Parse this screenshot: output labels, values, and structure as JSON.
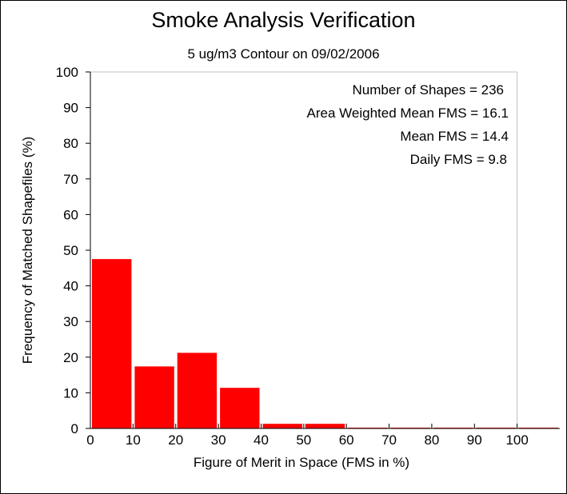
{
  "chart_data": {
    "type": "bar",
    "title": "Smoke Analysis Verification",
    "subtitle": "5 ug/m3 Contour on 09/02/2006",
    "xlabel": "Figure of Merit in Space (FMS in %)",
    "ylabel": "Frequency of Matched Shapefiles (%)",
    "xlim": [
      0,
      110
    ],
    "ylim": [
      0,
      100
    ],
    "x_ticks": [
      0,
      10,
      20,
      30,
      40,
      50,
      60,
      70,
      80,
      90,
      100
    ],
    "y_ticks": [
      0,
      10,
      20,
      30,
      40,
      50,
      60,
      70,
      80,
      90,
      100
    ],
    "grid": false,
    "bar_color": "#ff0000",
    "bins": [
      {
        "start": 0,
        "end": 10,
        "value": 47.5
      },
      {
        "start": 10,
        "end": 20,
        "value": 17.4
      },
      {
        "start": 20,
        "end": 30,
        "value": 21.2
      },
      {
        "start": 30,
        "end": 40,
        "value": 11.4
      },
      {
        "start": 40,
        "end": 50,
        "value": 1.3
      },
      {
        "start": 50,
        "end": 60,
        "value": 1.3
      },
      {
        "start": 60,
        "end": 70,
        "value": 0
      },
      {
        "start": 70,
        "end": 80,
        "value": 0
      },
      {
        "start": 80,
        "end": 90,
        "value": 0
      },
      {
        "start": 90,
        "end": 100,
        "value": 0
      },
      {
        "start": 100,
        "end": 110,
        "value": 0
      }
    ],
    "annotations": [
      "Number of Shapes = 236",
      "Area Weighted Mean FMS = 16.1",
      "Mean FMS = 14.4",
      "Daily FMS = 9.8"
    ]
  }
}
